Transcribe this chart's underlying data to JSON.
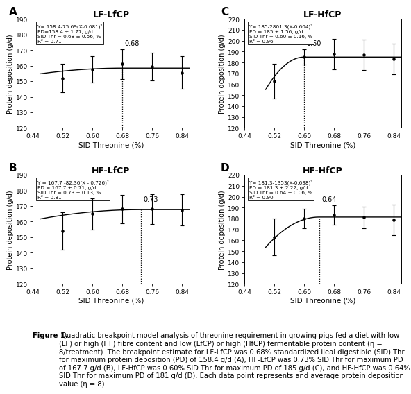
{
  "panels": [
    {
      "label": "A",
      "title": "LF-LfCP",
      "equation": "Y= 158.4-75.69(X-0.681)²",
      "pd_text": "PD=158.4 ± 1.77, g/d",
      "sid_text": "SID Thr = 0.68 ± 0.56, %",
      "r2_text": "R² = 0.71",
      "breakpoint": 0.68,
      "bp_label": "0.68",
      "pd": 158.4,
      "coeff": 75.69,
      "curve_start": 0.46,
      "x_data": [
        0.52,
        0.6,
        0.68,
        0.76,
        0.84
      ],
      "y_data": [
        152.0,
        157.5,
        161.0,
        159.5,
        155.5
      ],
      "y_err": [
        9.0,
        8.5,
        9.5,
        9.0,
        10.5
      ],
      "ylim": [
        120,
        190
      ],
      "yticks": [
        120,
        130,
        140,
        150,
        160,
        170,
        180,
        190
      ]
    },
    {
      "label": "C",
      "title": "LF-HfCP",
      "equation": "Y= 185-2801.3(X-0.604)²",
      "pd_text": "PD = 185 ± 1.56, g/d",
      "sid_text": "SID Thr = 0.60 ± 0.16, %",
      "r2_text": "R² = 0.96",
      "breakpoint": 0.6,
      "bp_label": "0.60",
      "pd": 185.0,
      "coeff": 2801.3,
      "curve_start": 0.497,
      "x_data": [
        0.52,
        0.6,
        0.68,
        0.76,
        0.84
      ],
      "y_data": [
        163.0,
        185.0,
        187.5,
        187.0,
        183.0
      ],
      "y_err": [
        16.0,
        7.0,
        14.0,
        14.0,
        14.0
      ],
      "ylim": [
        120,
        220
      ],
      "yticks": [
        120,
        130,
        140,
        150,
        160,
        170,
        180,
        190,
        200,
        210,
        220
      ]
    },
    {
      "label": "B",
      "title": "HF-LfCP",
      "equation": "Y = 167.7 -82.36(X - 0.726)²",
      "pd_text": "PD = 167.7 ± 0.71, g/d",
      "sid_text": "SID Thr = 0.73 ± 0.13, %",
      "r2_text": "R² = 0.81",
      "breakpoint": 0.73,
      "bp_label": "0.73",
      "pd": 167.7,
      "coeff": 82.36,
      "curve_start": 0.46,
      "x_data": [
        0.52,
        0.6,
        0.68,
        0.76,
        0.84
      ],
      "y_data": [
        154.0,
        165.0,
        168.0,
        168.0,
        167.5
      ],
      "y_err": [
        12.0,
        10.0,
        9.0,
        9.5,
        10.0
      ],
      "ylim": [
        120,
        190
      ],
      "yticks": [
        120,
        130,
        140,
        150,
        160,
        170,
        180,
        190
      ]
    },
    {
      "label": "D",
      "title": "HF-HfCP",
      "equation": "Y= 181.3-1353(X-0.638)²",
      "pd_text": "PD = 181.3 ± 2.22, g/d",
      "sid_text": "SID Thr = 0.64 ± 0.06, %",
      "r2_text": "R² = 0.90",
      "breakpoint": 0.64,
      "bp_label": "0.64",
      "pd": 181.3,
      "coeff": 1353.0,
      "curve_start": 0.497,
      "x_data": [
        0.52,
        0.6,
        0.68,
        0.76,
        0.84
      ],
      "y_data": [
        163.0,
        180.0,
        183.0,
        181.0,
        179.0
      ],
      "y_err": [
        17.0,
        9.0,
        9.0,
        10.0,
        14.0
      ],
      "ylim": [
        120,
        220
      ],
      "yticks": [
        120,
        130,
        140,
        150,
        160,
        170,
        180,
        190,
        200,
        210,
        220
      ]
    }
  ],
  "xlabel": "SID Threonine (%)",
  "ylabel": "Protein deposition (g/d)",
  "xticks": [
    0.44,
    0.52,
    0.6,
    0.68,
    0.76,
    0.84
  ],
  "xlim": [
    0.44,
    0.86
  ],
  "caption_bold": "Figure 1.",
  "caption_normal": " Quadratic breakpoint model analysis of threonine requirement in growing pigs fed a diet with low (LF) or high (HF) fibre content and low (LfCP) or high (HfCP) fermentable protein content (η = 8/treatment). The breakpoint estimate for LF-LfCP was 0.68% standardized ileal digestible (SID) Thr for maximum protein deposition (PD) of 158.4 g/d (A), HF-LfCP was 0.73% SID Thr for maximum PD of 167.7 g/d (B), LF-HfCP was 0.60% SID Thr for maximum PD of 185 g/d (C), and HF-HfCP was 0.64% SID Thr for maximum PD of 181 g/d (D). Each data point represents and average protein deposition value (η = 8)."
}
